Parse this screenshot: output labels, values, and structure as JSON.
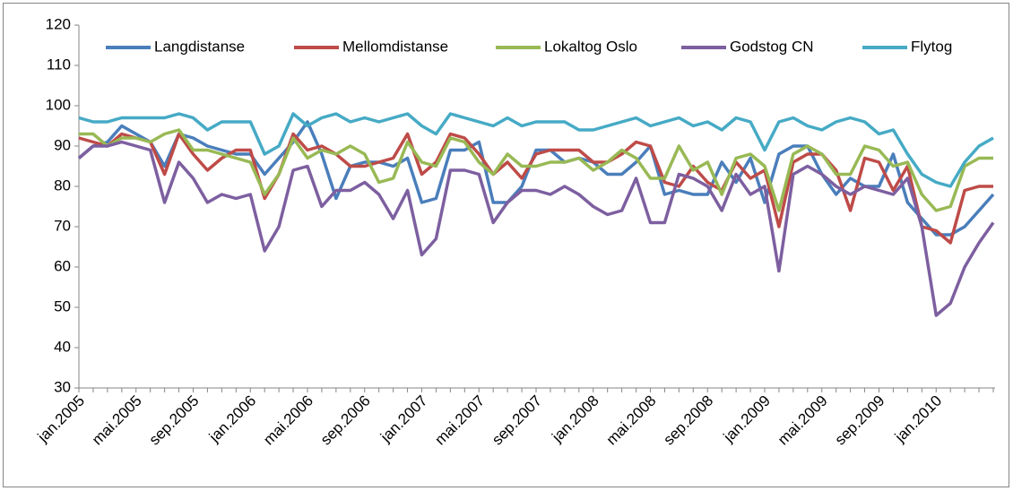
{
  "chart_data": {
    "type": "line",
    "categories": [
      "jan.2005",
      null,
      null,
      null,
      "mai.2005",
      null,
      null,
      null,
      "sep.2005",
      null,
      null,
      null,
      "jan.2006",
      null,
      null,
      null,
      "mai.2006",
      null,
      null,
      null,
      "sep.2006",
      null,
      null,
      null,
      "jan.2007",
      null,
      null,
      null,
      "mai.2007",
      null,
      null,
      null,
      "sep.2007",
      null,
      null,
      null,
      "jan.2008",
      null,
      null,
      null,
      "mai.2008",
      null,
      null,
      null,
      "sep.2008",
      null,
      null,
      null,
      "jan.2009",
      null,
      null,
      null,
      "mai.2009",
      null,
      null,
      null,
      "sep.2009",
      null,
      null,
      null,
      "jan.2010",
      null,
      null,
      null,
      null
    ],
    "series": [
      {
        "name": "Langdistanse",
        "color": "#4a7ebb",
        "values": [
          87,
          90,
          91,
          95,
          93,
          91,
          85,
          93,
          92,
          90,
          89,
          88,
          88,
          83,
          87,
          91,
          96,
          88,
          77,
          85,
          86,
          86,
          85,
          87,
          76,
          77,
          89,
          89,
          91,
          76,
          76,
          80,
          89,
          89,
          86,
          87,
          86,
          83,
          83,
          86,
          90,
          78,
          79,
          78,
          78,
          86,
          81,
          87,
          76,
          88,
          90,
          90,
          83,
          78,
          82,
          80,
          80,
          88,
          76,
          72,
          68,
          68,
          70,
          74,
          78
        ]
      },
      {
        "name": "Mellomdistanse",
        "color": "#be4b48",
        "values": [
          92,
          91,
          90,
          93,
          92,
          91,
          83,
          93,
          88,
          84,
          87,
          89,
          89,
          77,
          83,
          93,
          89,
          90,
          88,
          85,
          85,
          86,
          87,
          93,
          83,
          86,
          93,
          92,
          88,
          83,
          86,
          82,
          88,
          89,
          89,
          89,
          86,
          86,
          88,
          91,
          90,
          81,
          80,
          85,
          81,
          79,
          86,
          82,
          84,
          70,
          86,
          88,
          88,
          84,
          74,
          87,
          86,
          79,
          85,
          70,
          69,
          66,
          79,
          80,
          80
        ]
      },
      {
        "name": "Lokaltog Oslo",
        "color": "#98b954",
        "values": [
          93,
          93,
          90,
          92,
          92,
          91,
          93,
          94,
          89,
          89,
          88,
          87,
          86,
          78,
          83,
          92,
          87,
          89,
          88,
          90,
          88,
          81,
          82,
          91,
          86,
          85,
          92,
          91,
          86,
          83,
          88,
          85,
          85,
          86,
          86,
          87,
          84,
          86,
          89,
          87,
          82,
          82,
          90,
          84,
          86,
          78,
          87,
          88,
          85,
          74,
          88,
          90,
          88,
          83,
          83,
          90,
          89,
          85,
          86,
          78,
          74,
          75,
          85,
          87,
          87
        ]
      },
      {
        "name": "Godstog CN",
        "color": "#7d5fa0",
        "values": [
          87,
          90,
          90,
          91,
          90,
          89,
          76,
          86,
          82,
          76,
          78,
          77,
          78,
          64,
          70,
          84,
          85,
          75,
          79,
          79,
          81,
          78,
          72,
          79,
          63,
          67,
          84,
          84,
          83,
          71,
          76,
          79,
          79,
          78,
          80,
          78,
          75,
          73,
          74,
          82,
          71,
          71,
          83,
          82,
          80,
          74,
          83,
          78,
          80,
          59,
          83,
          85,
          83,
          80,
          78,
          80,
          79,
          78,
          82,
          70,
          48,
          51,
          60,
          66,
          71
        ]
      },
      {
        "name": "Flytog",
        "color": "#46aac5",
        "values": [
          97,
          96,
          96,
          97,
          97,
          97,
          97,
          98,
          97,
          94,
          96,
          96,
          96,
          88,
          90,
          98,
          95,
          97,
          98,
          96,
          97,
          96,
          97,
          98,
          95,
          93,
          98,
          97,
          96,
          95,
          97,
          95,
          96,
          96,
          96,
          94,
          94,
          95,
          96,
          97,
          95,
          96,
          97,
          95,
          96,
          94,
          97,
          96,
          89,
          96,
          97,
          95,
          94,
          96,
          97,
          96,
          93,
          94,
          88,
          83,
          81,
          80,
          86,
          90,
          92
        ]
      }
    ],
    "ylim": [
      30,
      120
    ],
    "yticks": [
      30,
      40,
      50,
      60,
      70,
      80,
      90,
      100,
      110,
      120
    ],
    "grid": false,
    "legend": "top"
  }
}
